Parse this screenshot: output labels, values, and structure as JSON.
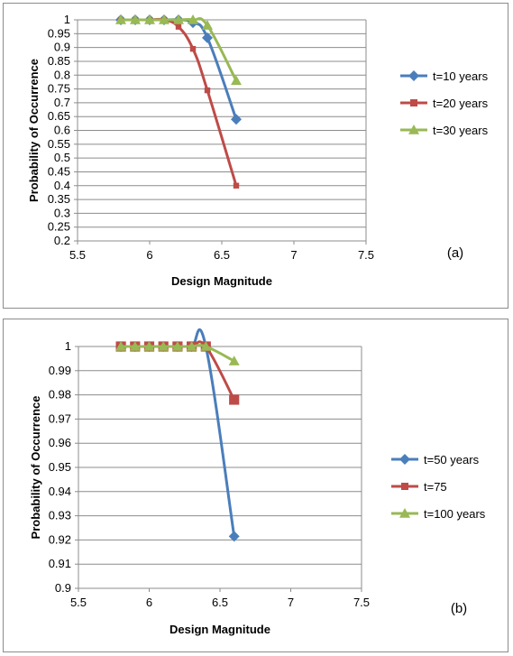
{
  "chart_data": [
    {
      "type": "line",
      "panel_label": "(a)",
      "xlabel": "Design Magnitude",
      "ylabel": "Probability of Occurrence",
      "xlim": [
        5.5,
        7.5
      ],
      "ylim": [
        0.2,
        1.0
      ],
      "x_ticks": [
        "5.5",
        "6",
        "6.5",
        "7",
        "7.5"
      ],
      "y_ticks": [
        "0.2",
        "0.25",
        "0.3",
        "0.35",
        "0.4",
        "0.45",
        "0.5",
        "0.55",
        "0.6",
        "0.65",
        "0.7",
        "0.75",
        "0.8",
        "0.85",
        "0.9",
        "0.95",
        "1"
      ],
      "grid": "horizontal",
      "legend_position": "right",
      "series": [
        {
          "name": "t=10 years",
          "color": "#4a7ebb",
          "marker": "diamond",
          "x": [
            5.8,
            5.9,
            6.0,
            6.1,
            6.2,
            6.3,
            6.4,
            6.6
          ],
          "y": [
            1.0,
            1.0,
            1.0,
            1.0,
            1.0,
            0.99,
            0.935,
            0.64
          ]
        },
        {
          "name": "t=20 years",
          "color": "#be4b48",
          "marker": "square",
          "x": [
            5.8,
            5.9,
            6.0,
            6.1,
            6.2,
            6.3,
            6.4,
            6.6
          ],
          "y": [
            1.0,
            1.0,
            1.0,
            1.0,
            0.975,
            0.895,
            0.745,
            0.4
          ]
        },
        {
          "name": "t=30 years",
          "color": "#98b954",
          "marker": "triangle",
          "x": [
            5.8,
            5.9,
            6.0,
            6.1,
            6.2,
            6.3,
            6.4,
            6.6
          ],
          "y": [
            1.0,
            1.0,
            1.0,
            1.0,
            1.0,
            1.0,
            0.98,
            0.78
          ]
        }
      ]
    },
    {
      "type": "line",
      "panel_label": "(b)",
      "xlabel": "Design Magnitude",
      "ylabel": "Probability of Occurrence",
      "xlim": [
        5.5,
        7.5
      ],
      "ylim": [
        0.9,
        1.0
      ],
      "x_ticks": [
        "5.5",
        "6",
        "6.5",
        "7",
        "7.5"
      ],
      "y_ticks": [
        "0.9",
        "0.91",
        "0.92",
        "0.93",
        "0.94",
        "0.95",
        "0.96",
        "0.97",
        "0.98",
        "0.99",
        "1"
      ],
      "grid": "horizontal",
      "legend_position": "right",
      "series": [
        {
          "name": "t=50 years",
          "color": "#4a7ebb",
          "marker": "diamond",
          "x": [
            5.8,
            5.9,
            6.0,
            6.1,
            6.2,
            6.3,
            6.4,
            6.6
          ],
          "y": [
            1.0,
            1.0,
            1.0,
            1.0,
            1.0,
            1.0,
            1.0,
            0.9215
          ]
        },
        {
          "name": "t=75",
          "color": "#be4b48",
          "marker": "square",
          "x": [
            5.8,
            5.9,
            6.0,
            6.1,
            6.2,
            6.3,
            6.4,
            6.6
          ],
          "y": [
            1.0,
            1.0,
            1.0,
            1.0,
            1.0,
            1.0,
            1.0,
            0.978
          ]
        },
        {
          "name": "t=100 years",
          "color": "#98b954",
          "marker": "triangle",
          "x": [
            5.8,
            5.9,
            6.0,
            6.1,
            6.2,
            6.3,
            6.4,
            6.6
          ],
          "y": [
            1.0,
            1.0,
            1.0,
            1.0,
            1.0,
            1.0,
            1.0,
            0.994
          ]
        }
      ]
    }
  ]
}
